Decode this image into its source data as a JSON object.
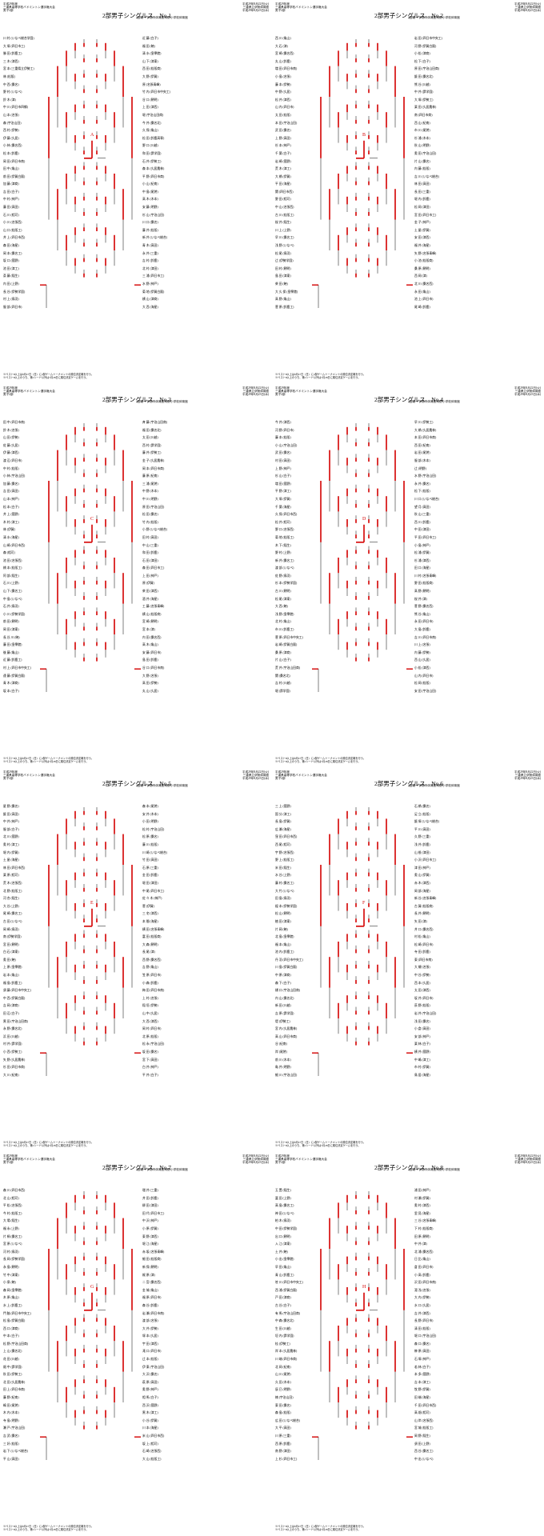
{
  "header": {
    "left": "平成29年度\n三重県高等学校バドミントン選手権大会\n男子2部\n",
    "right": "平成29年8月22日(火)\n三重県立伊勢体育館\n平成29年8月23日(水)"
  },
  "venue": "2回戦～ 伊勢市体育館,明野小学校体育館",
  "footnote": "※ベスト8以上は8月27日（日）に2部ゲームトーナメントの順位決定戦を行う。\n※ベスト8以上のうち、第1シード以外は7月28日に順位決定ゲームを行う。",
  "sheets": [
    {
      "title": "2部男子シングルス　No.1",
      "block": "A",
      "left_names": [
        "川 村 (いなべ総合学園)",
        "大 塚 (四日市工)",
        "勝 田 (鈴鹿工)",
        "三 木 (津西)",
        "宮 本 (三重県立伊勢工)",
        "林 (松阪)",
        "中 西 (桑名)",
        "野 村 (いなべ)",
        "鈴 木 (津)",
        "中 川 (四日市四郷)",
        "山 本 (名張)",
        "森 (宇治山田)",
        "西 村 (伊勢)",
        "伊 藤 (久居)",
        "小 林 (桑名西)",
        "松 本 (鈴鹿)",
        "岡 田 (四日市南)",
        "田 中 (亀山)",
        "前 田 (伊賀白鳳)",
        "加 藤 (津商)",
        "吉 田 (白子)",
        "中 村 (神戸)",
        "藤 田 (高田)",
        "石 川 (相可)",
        "小 川 (名張西)",
        "山 口 (松阪工)",
        "井 上 (四日市西)",
        "森 田 (海星)",
        "岡 本 (桑名工)",
        "坂 口 (菰野)",
        "池 田 (津工)",
        "斎 藤 (稲生)",
        "内 田 (上野)",
        "長 谷 (伊勢学園)",
        "村 上 (鳥羽)",
        "服 部 (四日市)"
      ],
      "right_names": [
        "近 藤 (白子)",
        "福 田 (暁)",
        "清 水 (皇學館)",
        "山 下 (津東)",
        "西 田 (松阪商)",
        "大 野 (伊賀)",
        "原 (名張青峰)",
        "竹 内 (四日市中央工)",
        "谷 口 (朝明)",
        "上 田 (津西)",
        "堀 (宇治山田商)",
        "今 井 (桑名北)",
        "久 保 (亀山)",
        "松 田 (鈴鹿高専)",
        "野 口 (川越)",
        "和 田 (昴学園)",
        "石 井 (伊勢工)",
        "森 本 (久居農林)",
        "平 野 (四日市商)",
        "小 山 (紀南)",
        "中 島 (尾鷲)",
        "高 木 (木本)",
        "安 藤 (明野)",
        "杉 山 (宇治山田)",
        "川 口 (桑名)",
        "藤 井 (松阪)",
        "新 井 (いなべ総合)",
        "青 木 (高田)",
        "永 井 (三重)",
        "吉 村 (鈴鹿)",
        "北 村 (津田)",
        "三 浦 (四日市工)",
        "水 野 (神戸)",
        "菊 地 (伊賀白鳳)",
        "横 山 (津商)",
        "大 西 (海星)"
      ]
    },
    {
      "title": "2部男子シングルス　No.2",
      "block": "B",
      "left_names": [
        "西 川 (亀山)",
        "大 石 (津)",
        "宮 崎 (桑名西)",
        "丸 山 (鈴鹿)",
        "増 田 (四日市南)",
        "小 島 (名張)",
        "藤 本 (伊勢)",
        "中 野 (久居)",
        "松 井 (津西)",
        "山 内 (四日市)",
        "太 田 (松阪)",
        "本 田 (宇治山田)",
        "武 田 (桑名)",
        "上 野 (高田)",
        "杉 本 (神戸)",
        "千 葉 (白子)",
        "岩 崎 (菰野)",
        "荒 木 (津工)",
        "大 橋 (伊賀)",
        "平 田 (海星)",
        "関 (四日市西)",
        "野 田 (相可)",
        "中 山 (名張西)",
        "古 川 (松阪工)",
        "桜 井 (稲生)",
        "川 上 (上野)",
        "早 川 (桑名工)",
        "浅 野 (いなべ)",
        "松 尾 (鳥羽)",
        "辻 (伊勢学園)",
        "田 村 (朝明)",
        "島 田 (津東)",
        "柴 田 (暁)",
        "大 久 保 (皇學館)",
        "高 野 (亀山)",
        "菅 原 (鈴鹿工)"
      ],
      "right_names": [
        "岩 田 (四日市中央工)",
        "河 野 (伊賀白鳳)",
        "小 松 (津商)",
        "松 下 (白子)",
        "原 田 (宇治山田商)",
        "飯 田 (桑名北)",
        "熊 谷 (川越)",
        "中 井 (昴学園)",
        "大 塚 (伊勢工)",
        "栗 田 (久居農林)",
        "南 (四日市商)",
        "西 山 (紀南)",
        "市 川 (尾鷲)",
        "杉 浦 (木本)",
        "秋 山 (明野)",
        "奥 田 (宇治山田)",
        "片 山 (桑名)",
        "内 藤 (松阪)",
        "吉 川 (いなべ総合)",
        "林 田 (高田)",
        "長 田 (三重)",
        "堀 内 (鈴鹿)",
        "松 岡 (津田)",
        "宮 田 (四日市工)",
        "金 子 (神戸)",
        "土 屋 (伊賀)",
        "安 田 (津西)",
        "福 井 (海星)",
        "矢 野 (名張青峰)",
        "小 池 (松阪商)",
        "桑 原 (朝明)",
        "西 岡 (津)",
        "北 川 (桑名西)",
        "永 田 (亀山)",
        "池 上 (四日市)",
        "尾 崎 (鈴鹿)"
      ]
    },
    {
      "title": "2部男子シングルス　No.3",
      "block": "C",
      "left_names": [
        "田 中 (四日市南)",
        "鈴 木 (名張)",
        "山 田 (伊勢)",
        "佐 藤 (久居)",
        "伊 藤 (津西)",
        "渡 辺 (四日市)",
        "中 村 (松阪)",
        "小 林 (宇治山田)",
        "加 藤 (桑名)",
        "吉 田 (高田)",
        "山 本 (神戸)",
        "松 本 (白子)",
        "井 上 (菰野)",
        "木 村 (津工)",
        "林 (伊賀)",
        "清 水 (海星)",
        "山 崎 (四日市西)",
        "森 (相可)",
        "池 田 (名張西)",
        "橋 本 (松阪工)",
        "阿 部 (稲生)",
        "石 川 (上野)",
        "山 下 (桑名工)",
        "中 島 (いなべ)",
        "石 井 (鳥羽)",
        "小 川 (伊勢学園)",
        "前 田 (朝明)",
        "岡 田 (津東)",
        "長 谷 川 (暁)",
        "藤 田 (皇學館)",
        "後 藤 (亀山)",
        "近 藤 (鈴鹿工)",
        "村 上 (四日市中央工)",
        "遠 藤 (伊賀白鳳)",
        "青 木 (津商)",
        "坂 本 (白子)"
      ],
      "right_names": [
        "斉 藤 (宇治山田商)",
        "福 田 (桑名北)",
        "太 田 (川越)",
        "西 村 (昴学園)",
        "藤 井 (伊勢工)",
        "金 子 (久居農林)",
        "岡 本 (四日市商)",
        "藤 原 (紀南)",
        "三 浦 (尾鷲)",
        "中 野 (木本)",
        "中 川 (明野)",
        "原 田 (宇治山田)",
        "松 田 (桑名)",
        "竹 内 (松阪)",
        "小 野 (いなべ総合)",
        "田 村 (高田)",
        "中 山 (三重)",
        "和 田 (鈴鹿)",
        "石 田 (津田)",
        "森 田 (四日市工)",
        "上 田 (神戸)",
        "原 (伊賀)",
        "柴 田 (津西)",
        "酒 井 (海星)",
        "工 藤 (名張青峰)",
        "横 山 (松阪商)",
        "宮 崎 (朝明)",
        "宮 本 (津)",
        "内 田 (桑名西)",
        "高 木 (亀山)",
        "安 藤 (四日市)",
        "島 田 (鈴鹿)",
        "谷 口 (四日市南)",
        "大 野 (名張)",
        "高 田 (伊勢)",
        "丸 山 (久居)"
      ]
    },
    {
      "title": "2部男子シングルス　No.4",
      "block": "D",
      "left_names": [
        "今 井 (津西)",
        "河 野 (四日市)",
        "藤 本 (松阪)",
        "小 山 (宇治山田)",
        "武 田 (桑名)",
        "村 田 (高田)",
        "上 野 (神戸)",
        "杉 山 (白子)",
        "増 田 (菰野)",
        "平 野 (津工)",
        "大 塚 (伊賀)",
        "千 葉 (海星)",
        "久 保 (四日市西)",
        "松 井 (相可)",
        "野 口 (名張西)",
        "菊 地 (松阪工)",
        "木 下 (稲生)",
        "野 村 (上野)",
        "新 井 (桑名工)",
        "渡 部 (いなべ)",
        "佐 野 (鳥羽)",
        "杉 本 (伊勢学園)",
        "古 川 (朝明)",
        "松 尾 (津東)",
        "大 西 (暁)",
        "浅 野 (皇學館)",
        "北 村 (亀山)",
        "市 川 (鈴鹿工)",
        "菅 原 (四日市中央工)",
        "岩 崎 (伊賀白鳳)",
        "桑 原 (津商)",
        "片 山 (白子)",
        "荒 井 (宇治山田商)",
        "関 (桑名北)",
        "吉 村 (川越)",
        "堀 (昴学園)"
      ],
      "right_names": [
        "早 川 (伊勢工)",
        "大 橋 (久居農林)",
        "本 田 (四日市商)",
        "西 田 (紀南)",
        "岩 田 (尾鷲)",
        "服 部 (木本)",
        "辻 (明野)",
        "水 野 (宇治山田)",
        "永 井 (桑名)",
        "松 下 (松阪)",
        "川 口 (いなべ総合)",
        "望 月 (高田)",
        "秋 山 (三重)",
        "西 川 (鈴鹿)",
        "中 田 (津田)",
        "平 田 (四日市工)",
        "小 島 (神戸)",
        "松 浦 (伊賀)",
        "杉 浦 (津西)",
        "田 口 (海星)",
        "川 村 (名張青峰)",
        "野 田 (松阪商)",
        "高 野 (朝明)",
        "桜 井 (津)",
        "菅 野 (桑名西)",
        "熊 谷 (亀山)",
        "永 田 (四日市)",
        "大 島 (鈴鹿)",
        "吉 川 (四日市南)",
        "川 上 (名張)",
        "内 藤 (伊勢)",
        "西 山 (久居)",
        "小 松 (津西)",
        "山 内 (四日市)",
        "松 岡 (松阪)",
        "安 田 (宇治山田)"
      ]
    },
    {
      "title": "2部男子シングルス　No.5",
      "block": "E",
      "left_names": [
        "星 野 (桑名)",
        "飯 田 (高田)",
        "中 井 (神戸)",
        "服 部 (白子)",
        "北 川 (菰野)",
        "奥 村 (津工)",
        "堀 内 (伊賀)",
        "土 屋 (海星)",
        "林 田 (四日市西)",
        "栗 原 (相可)",
        "荒 木 (名張西)",
        "北 野 (松阪工)",
        "河 合 (稲生)",
        "大 谷 (上野)",
        "尾 崎 (桑名工)",
        "古 田 (いなべ)",
        "岡 崎 (鳥羽)",
        "南 (伊勢学園)",
        "宮 田 (朝明)",
        "白 石 (津東)",
        "奥 田 (暁)",
        "上 原 (皇學館)",
        "岩 本 (亀山)",
        "福 島 (鈴鹿工)",
        "須 藤 (四日市中央工)",
        "中 西 (伊賀白鳳)",
        "吉 岡 (津商)",
        "田 辺 (白子)",
        "黒 田 (宇治山田商)",
        "永 野 (桑名北)",
        "浜 田 (川越)",
        "村 井 (昴学園)",
        "小 西 (伊勢工)",
        "矢 野 (久居農林)",
        "杉 田 (四日市商)",
        "大 川 (紀南)"
      ],
      "right_names": [
        "森 本 (尾鷲)",
        "安 井 (木本)",
        "小 田 (明野)",
        "松 村 (宇治山田)",
        "松 原 (桑名)",
        "藤 川 (松阪)",
        "川 崎 (いなべ総合)",
        "竹 田 (高田)",
        "石 原 (三重)",
        "金 田 (鈴鹿)",
        "堀 田 (津田)",
        "中 尾 (四日市工)",
        "佐 々 木 (神戸)",
        "菅 (伊賀)",
        "三 宅 (津西)",
        "本 間 (海星)",
        "横 田 (名張青峰)",
        "富 田 (松阪商)",
        "大 森 (朝明)",
        "長 尾 (津)",
        "西 野 (桑名西)",
        "吉 野 (亀山)",
        "笠 原 (四日市)",
        "小 森 (鈴鹿)",
        "梅 田 (四日市南)",
        "上 村 (名張)",
        "稲 垣 (伊勢)",
        "山 中 (久居)",
        "大 西 (津西)",
        "岡 村 (四日市)",
        "北 原 (松阪)",
        "松 永 (宇治山田)",
        "坂 田 (桑名)",
        "宮 下 (高田)",
        "白 井 (神戸)",
        "平 井 (白子)"
      ]
    },
    {
      "title": "2部男子シングルス　No.6",
      "block": "F",
      "left_names": [
        "三 上 (菰野)",
        "国 分 (津工)",
        "長 島 (伊賀)",
        "広 瀬 (海星)",
        "窪 田 (四日市西)",
        "西 尾 (相可)",
        "宇 野 (名張西)",
        "野 上 (松阪工)",
        "米 田 (稲生)",
        "水 谷 (上野)",
        "藤 村 (桑名工)",
        "大 竹 (いなべ)",
        "田 島 (鳥羽)",
        "榎 本 (伊勢学園)",
        "松 山 (朝明)",
        "植 田 (津東)",
        "片 岡 (暁)",
        "北 島 (皇學館)",
        "福 本 (亀山)",
        "池 内 (鈴鹿工)",
        "丹 羽 (四日市中央工)",
        "川 島 (伊賀白鳳)",
        "中 原 (津商)",
        "森 下 (白子)",
        "樋 口 (宇治山田商)",
        "内 山 (桑名北)",
        "新 田 (川越)",
        "吉 原 (昴学園)",
        "堤 (伊勢工)",
        "宮 内 (久居農林)",
        "高 山 (四日市商)",
        "谷 (紀南)",
        "岸 (尾鷲)",
        "前 川 (木本)",
        "亀 井 (明野)",
        "細 川 (宇治山田)"
      ],
      "right_names": [
        "石 橋 (桑名)",
        "足 立 (松阪)",
        "飯 塚 (いなべ総合)",
        "平 川 (高田)",
        "久 野 (三重)",
        "浅 井 (鈴鹿)",
        "山 根 (津田)",
        "小 沢 (四日市工)",
        "津 田 (神戸)",
        "奥 山 (伊賀)",
        "赤 木 (津西)",
        "岡 部 (海星)",
        "新 谷 (名張青峰)",
        "古 賀 (松阪商)",
        "長 井 (朝明)",
        "矢 田 (津)",
        "井 口 (桑名西)",
        "村 松 (亀山)",
        "松 崎 (四日市)",
        "寺 田 (鈴鹿)",
        "東 (四日市南)",
        "大 槻 (名張)",
        "中 谷 (伊勢)",
        "西 本 (久居)",
        "太 田 (津西)",
        "坂 井 (四日市)",
        "荻 野 (松阪)",
        "岩 井 (宇治山田)",
        "浅 田 (桑名)",
        "小 倉 (高田)",
        "安 部 (神戸)",
        "栗 林 (白子)",
        "横 井 (菰野)",
        "中 嶋 (津工)",
        "市 村 (伊賀)",
        "鳥 居 (海星)"
      ]
    },
    {
      "title": "2部男子シングルス　No.7",
      "block": "G",
      "left_names": [
        "森 川 (四日市西)",
        "北 山 (相可)",
        "平 松 (名張西)",
        "今 村 (松阪工)",
        "大 場 (稲生)",
        "福 永 (上野)",
        "片 桐 (桑名工)",
        "宮 原 (いなべ)",
        "河 村 (鳥羽)",
        "長 岡 (伊勢学園)",
        "永 島 (朝明)",
        "竹 中 (津東)",
        "小 泉 (暁)",
        "森 岡 (皇學館)",
        "木 原 (亀山)",
        "水 上 (鈴鹿工)",
        "門 脇 (四日市中央工)",
        "松 島 (伊賀白鳳)",
        "西 口 (津商)",
        "中 本 (白子)",
        "松 野 (宇治山田商)",
        "上 山 (桑名北)",
        "花 田 (川越)",
        "畑 中 (昴学園)",
        "秋 田 (伊勢工)",
        "北 田 (久居農林)",
        "田 上 (四日市商)",
        "藤 野 (紀南)",
        "嶋 田 (尾鷲)",
        "木 内 (木本)",
        "寺 島 (明野)",
        "瀬 戸 (宇治山田)",
        "吉 武 (桑名)",
        "三 好 (松阪)",
        "岩 下 (いなべ総合)",
        "平 山 (高田)"
      ],
      "right_names": [
        "増 井 (三重)",
        "井 田 (鈴鹿)",
        "柳 田 (津田)",
        "田 代 (四日市工)",
        "中 沢 (神戸)",
        "小 原 (伊賀)",
        "東 野 (津西)",
        "堀 江 (海星)",
        "赤 坂 (名張青峰)",
        "細 田 (松阪商)",
        "新 保 (朝明)",
        "梶 原 (津)",
        "二 宮 (桑名西)",
        "金 城 (亀山)",
        "福 原 (四日市)",
        "森 谷 (鈴鹿)",
        "岩 瀬 (四日市南)",
        "渡 部 (名張)",
        "大 井 (伊勢)",
        "塚 本 (久居)",
        "宇 田 (津西)",
        "滝 口 (四日市)",
        "辻 本 (松阪)",
        "伊 東 (宇治山田)",
        "大 沢 (桑名)",
        "萩 原 (高田)",
        "奥 野 (神戸)",
        "相 馬 (白子)",
        "西 沢 (菰野)",
        "黒 木 (津工)",
        "小 谷 (伊賀)",
        "川 本 (海星)",
        "米 山 (四日市西)",
        "坂 上 (相可)",
        "石 崎 (名張西)",
        "大 山 (松阪工)"
      ]
    },
    {
      "title": "2部男子シングルス　No.8",
      "block": "H",
      "left_names": [
        "玉 置 (稲生)",
        "冨 田 (上野)",
        "高 島 (桑名工)",
        "神 田 (いなべ)",
        "柏 木 (鳥羽)",
        "中 田 (伊勢学園)",
        "出 口 (朝明)",
        "入 江 (津東)",
        "土 井 (暁)",
        "小 出 (皇學館)",
        "早 田 (亀山)",
        "青 山 (鈴鹿工)",
        "笹 川 (四日市中央工)",
        "西 浦 (伊賀白鳳)",
        "戸 田 (津商)",
        "古 谷 (白子)",
        "有 馬 (宇治山田商)",
        "中 森 (桑名北)",
        "生 田 (川越)",
        "垣 内 (昴学園)",
        "桂 (伊勢工)",
        "岸 本 (久居農林)",
        "川 端 (四日市商)",
        "北 岡 (紀南)",
        "山 川 (尾鷲)",
        "久 田 (木本)",
        "辰 巳 (明野)",
        "楠 (宇治山田)",
        "東 田 (桑名)",
        "森 島 (松阪)",
        "広 田 (いなべ総合)",
        "大 平 (高田)",
        "川 原 (三重)",
        "西 原 (鈴鹿)",
        "南 野 (津田)",
        "上 杉 (四日市工)"
      ],
      "right_names": [
        "浦 田 (神戸)",
        "村 瀬 (伊賀)",
        "奥 村 (津西)",
        "里 見 (海星)",
        "三 谷 (名張青峰)",
        "下 村 (松阪商)",
        "田 原 (朝明)",
        "中 井 (津)",
        "北 浦 (桑名西)",
        "日 比 (亀山)",
        "倉 田 (四日市)",
        "小 高 (鈴鹿)",
        "沢 田 (四日市南)",
        "湯 浅 (名張)",
        "大 内 (伊勢)",
        "水 口 (久居)",
        "吉 井 (津西)",
        "長 野 (四日市)",
        "清 田 (松阪)",
        "堀 口 (宇治山田)",
        "森 口 (桑名)",
        "榊 原 (高田)",
        "石 塚 (神戸)",
        "若 林 (白子)",
        "本 多 (菰野)",
        "吉 本 (津工)",
        "牧 野 (伊賀)",
        "田 端 (海星)",
        "千 田 (四日市西)",
        "高 畑 (相可)",
        "山 岸 (名張西)",
        "宮 城 (松阪工)",
        "岡 野 (稲生)",
        "須 田 (上野)",
        "西 谷 (桑名工)",
        "中 出 (いなべ)"
      ]
    }
  ],
  "colors": {
    "winner_line": "#d40000",
    "bracket_line": "#000000"
  }
}
